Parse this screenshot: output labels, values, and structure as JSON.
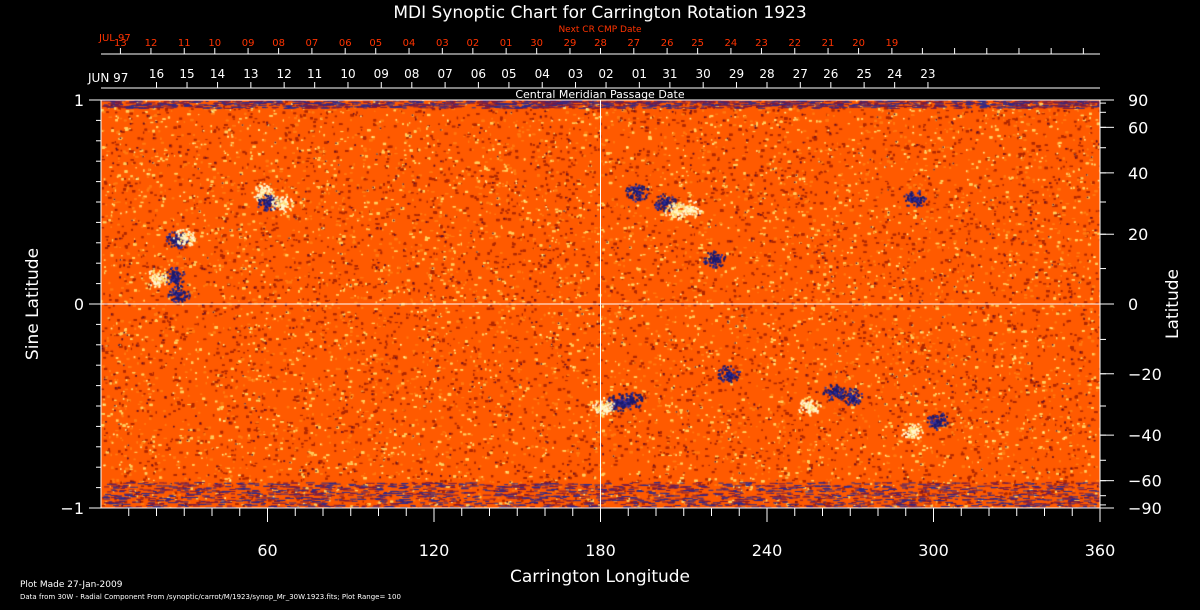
{
  "chart_data": {
    "type": "heatmap",
    "title": "MDI Synoptic Chart for Carrington Rotation 1923",
    "xlabel": "Carrington Longitude",
    "ylabel_left": "Sine Latitude",
    "ylabel_right": "Latitude",
    "xlim": [
      0,
      360
    ],
    "ylim": [
      -1,
      1
    ],
    "x_ticks": [
      60,
      120,
      180,
      240,
      300,
      360
    ],
    "x_minor_step": 10,
    "y_left_ticks": [
      {
        "value": 1,
        "label": "1"
      },
      {
        "value": 0,
        "label": "0"
      },
      {
        "value": -1,
        "label": "−1"
      }
    ],
    "y_right_ticks_deg": [
      {
        "deg": 90,
        "label": "90"
      },
      {
        "deg": 60,
        "label": "60"
      },
      {
        "deg": 40,
        "label": "40"
      },
      {
        "deg": 20,
        "label": "20"
      },
      {
        "deg": 0,
        "label": "0"
      },
      {
        "deg": -20,
        "label": "−20"
      },
      {
        "deg": -40,
        "label": "−40"
      },
      {
        "deg": -60,
        "label": "−60"
      },
      {
        "deg": -90,
        "label": "−90"
      }
    ],
    "grid_lines": {
      "longitude": 180,
      "sine_latitude": 0
    },
    "top_axis_inner": {
      "caption": "Central Meridian Passage Date",
      "month_label": "JUN 97",
      "dates": [
        {
          "longitude": 20,
          "label": "16"
        },
        {
          "longitude": 31,
          "label": "15"
        },
        {
          "longitude": 42,
          "label": "14"
        },
        {
          "longitude": 54,
          "label": "13"
        },
        {
          "longitude": 66,
          "label": "12"
        },
        {
          "longitude": 77,
          "label": "11"
        },
        {
          "longitude": 89,
          "label": "10"
        },
        {
          "longitude": 101,
          "label": "09"
        },
        {
          "longitude": 112,
          "label": "08"
        },
        {
          "longitude": 124,
          "label": "07"
        },
        {
          "longitude": 136,
          "label": "06"
        },
        {
          "longitude": 147,
          "label": "05"
        },
        {
          "longitude": 159,
          "label": "04"
        },
        {
          "longitude": 171,
          "label": "03"
        },
        {
          "longitude": 182,
          "label": "02"
        },
        {
          "longitude": 194,
          "label": "01"
        },
        {
          "longitude": 205,
          "label": "31"
        },
        {
          "longitude": 217,
          "label": "30"
        },
        {
          "longitude": 229,
          "label": "29"
        },
        {
          "longitude": 240,
          "label": "28"
        },
        {
          "longitude": 252,
          "label": "27"
        },
        {
          "longitude": 263,
          "label": "26"
        },
        {
          "longitude": 275,
          "label": "25"
        },
        {
          "longitude": 286,
          "label": "24"
        },
        {
          "longitude": 298,
          "label": "23"
        }
      ]
    },
    "top_axis_outer": {
      "caption": "Next CR CMP Date",
      "month_label": "JUL 97",
      "color": "#ff3300",
      "dates": [
        {
          "longitude": 7,
          "label": "13"
        },
        {
          "longitude": 18,
          "label": "12"
        },
        {
          "longitude": 30,
          "label": "11"
        },
        {
          "longitude": 41,
          "label": "10"
        },
        {
          "longitude": 53,
          "label": "09"
        },
        {
          "longitude": 64,
          "label": "08"
        },
        {
          "longitude": 76,
          "label": "07"
        },
        {
          "longitude": 88,
          "label": "06"
        },
        {
          "longitude": 99,
          "label": "05"
        },
        {
          "longitude": 111,
          "label": "04"
        },
        {
          "longitude": 123,
          "label": "03"
        },
        {
          "longitude": 134,
          "label": "02"
        },
        {
          "longitude": 146,
          "label": "01"
        },
        {
          "longitude": 157,
          "label": "30"
        },
        {
          "longitude": 169,
          "label": "29"
        },
        {
          "longitude": 180,
          "label": "28"
        },
        {
          "longitude": 192,
          "label": "27"
        },
        {
          "longitude": 204,
          "label": "26"
        },
        {
          "longitude": 215,
          "label": "25"
        },
        {
          "longitude": 227,
          "label": "24"
        },
        {
          "longitude": 238,
          "label": "23"
        },
        {
          "longitude": 250,
          "label": "22"
        },
        {
          "longitude": 262,
          "label": "21"
        },
        {
          "longitude": 273,
          "label": "20"
        },
        {
          "longitude": 285,
          "label": "19"
        }
      ]
    },
    "features": [
      {
        "polarity": "negative",
        "longitude": 27,
        "sine_latitude": 0.32
      },
      {
        "polarity": "positive",
        "longitude": 30,
        "sine_latitude": 0.33
      },
      {
        "polarity": "negative",
        "longitude": 26,
        "sine_latitude": 0.14
      },
      {
        "polarity": "negative",
        "longitude": 28,
        "sine_latitude": 0.05
      },
      {
        "polarity": "positive",
        "longitude": 20,
        "sine_latitude": 0.13
      },
      {
        "polarity": "positive",
        "longitude": 58,
        "sine_latitude": 0.55
      },
      {
        "polarity": "negative",
        "longitude": 60,
        "sine_latitude": 0.5
      },
      {
        "polarity": "positive",
        "longitude": 65,
        "sine_latitude": 0.49
      },
      {
        "polarity": "negative",
        "longitude": 193,
        "sine_latitude": 0.55
      },
      {
        "polarity": "negative",
        "longitude": 203,
        "sine_latitude": 0.5
      },
      {
        "polarity": "positive",
        "longitude": 207,
        "sine_latitude": 0.46
      },
      {
        "polarity": "positive",
        "longitude": 212,
        "sine_latitude": 0.47
      },
      {
        "polarity": "negative",
        "longitude": 221,
        "sine_latitude": 0.22
      },
      {
        "polarity": "negative",
        "longitude": 293,
        "sine_latitude": 0.52
      },
      {
        "polarity": "negative",
        "longitude": 186,
        "sine_latitude": -0.48
      },
      {
        "polarity": "positive",
        "longitude": 181,
        "sine_latitude": -0.5
      },
      {
        "polarity": "negative",
        "longitude": 191,
        "sine_latitude": -0.47
      },
      {
        "polarity": "positive",
        "longitude": 255,
        "sine_latitude": -0.5
      },
      {
        "polarity": "negative",
        "longitude": 264,
        "sine_latitude": -0.43
      },
      {
        "polarity": "negative",
        "longitude": 270,
        "sine_latitude": -0.45
      },
      {
        "polarity": "positive",
        "longitude": 292,
        "sine_latitude": -0.62
      },
      {
        "polarity": "negative",
        "longitude": 301,
        "sine_latitude": -0.57
      },
      {
        "polarity": "negative",
        "longitude": 226,
        "sine_latitude": -0.34
      }
    ],
    "colors": {
      "background": "#000000",
      "field_base": "#ff5a00",
      "field_dark": "#b02800",
      "field_light": "#ffd060",
      "negative": "#1a1a70",
      "positive": "#fff8d0",
      "axis": "#ffffff",
      "outer_date_text": "#ff3300"
    }
  },
  "footer": {
    "made": "Plot Made 27-Jan-2009",
    "data_note": "Data from 30W - Radial Component From /synoptic/carrot/M/1923/synop_Mr_30W.1923.fits; Plot Range= 100"
  }
}
